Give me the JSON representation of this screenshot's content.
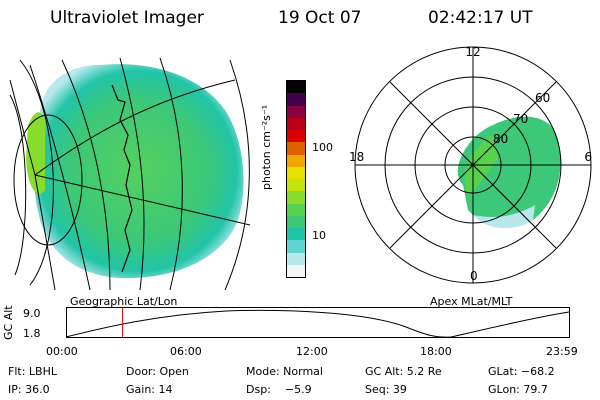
{
  "header": {
    "title": "Ultraviolet Imager",
    "date": "19 Oct 07",
    "time": "02:42:17 UT"
  },
  "colorbar": {
    "unit_label": "photon cm⁻²s⁻¹",
    "ticks": [
      "100",
      "10"
    ],
    "colors": [
      "#f4f6fa",
      "#b8e8ee",
      "#5fd4d0",
      "#22c4a8",
      "#3cc878",
      "#58d24c",
      "#88dc2c",
      "#c4e410",
      "#e8e000",
      "#f0a800",
      "#e06000",
      "#d80000",
      "#b80018",
      "#8a0040",
      "#40004a",
      "#000000"
    ]
  },
  "geo_panel": {
    "label": "Geographic Lat/Lon"
  },
  "polar_panel": {
    "label": "Apex MLat/MLT",
    "mlt_labels": {
      "top": "12",
      "left": "18",
      "right": "6",
      "bottom": "0"
    },
    "lat_labels": [
      "60",
      "70",
      "80"
    ]
  },
  "altitude_plot": {
    "ylabel": "GC Alt",
    "yticks": [
      "9.0",
      "1.8"
    ],
    "xticks": [
      "00:00",
      "06:00",
      "12:00",
      "18:00",
      "23:59"
    ],
    "current_hour": 2.7
  },
  "status": {
    "row1": {
      "flt": "Flt: LBHL",
      "door": "Door: Open",
      "mode": "Mode: Normal",
      "gcalt": "GC Alt: 5.2 Re",
      "glat": "GLat: −68.2"
    },
    "row2": {
      "ip": "IP: 36.0",
      "gain": "Gain: 14",
      "dsp": "Dsp:    −5.9",
      "seq": "Seq: 39",
      "glon": "GLon: 79.7"
    }
  }
}
